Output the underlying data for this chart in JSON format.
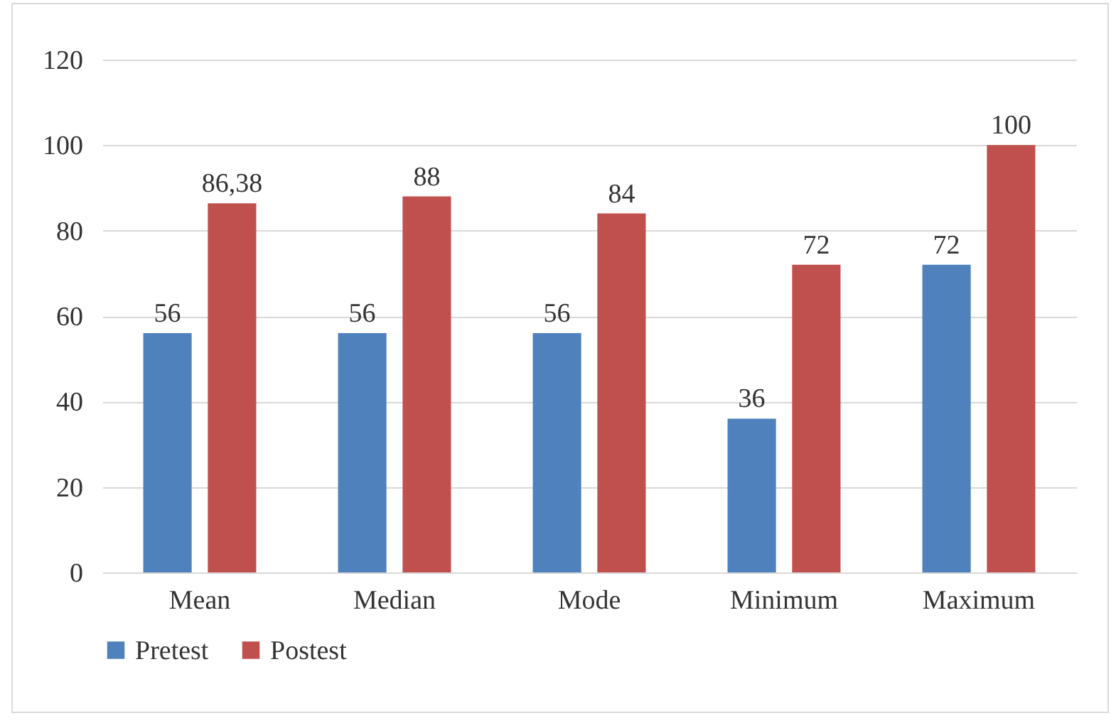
{
  "chart_data": {
    "type": "bar",
    "categories": [
      "Mean",
      "Median",
      "Mode",
      "Minimum",
      "Maximum"
    ],
    "series": [
      {
        "name": "Pretest",
        "color": "#4f81bd",
        "values": [
          56,
          56,
          56,
          36,
          72
        ],
        "value_labels": [
          "56",
          "56",
          "56",
          "36",
          "72"
        ]
      },
      {
        "name": "Postest",
        "color": "#c0504d",
        "values": [
          86.38,
          88,
          84,
          72,
          100
        ],
        "value_labels": [
          "86,38",
          "88",
          "84",
          "72",
          "100"
        ]
      }
    ],
    "ylim": [
      0,
      120
    ],
    "yticks": [
      0,
      20,
      40,
      60,
      80,
      100,
      120
    ],
    "grid": "y",
    "legend": "bottom"
  }
}
